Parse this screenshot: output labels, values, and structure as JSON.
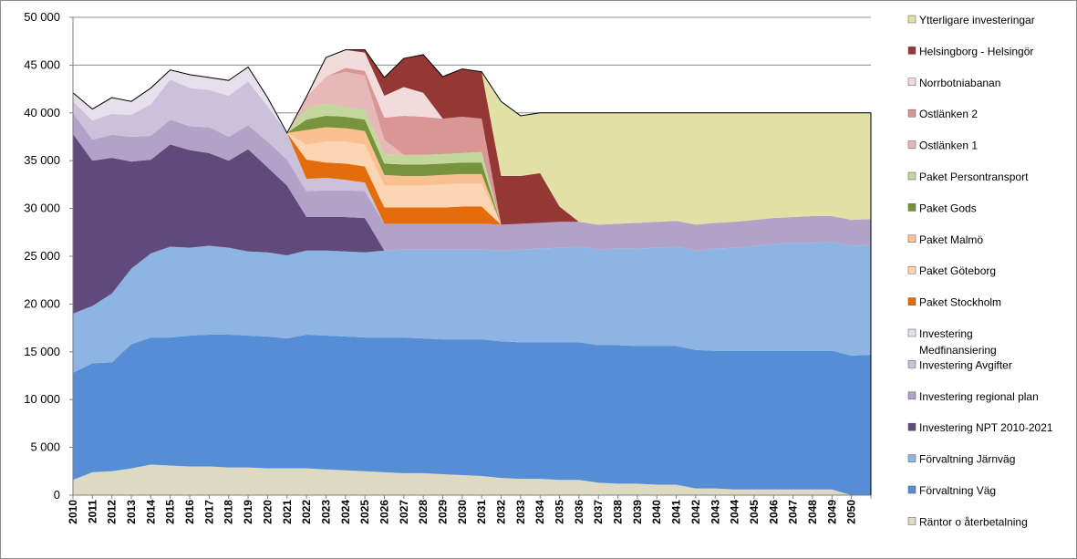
{
  "chart_data": {
    "type": "area",
    "stacked": true,
    "title": "",
    "xlabel": "",
    "ylabel": "",
    "ylim": [
      0,
      50000
    ],
    "yticks": [
      0,
      5000,
      10000,
      15000,
      20000,
      25000,
      30000,
      35000,
      40000,
      45000,
      50000
    ],
    "ytick_labels": [
      "0",
      "5 000",
      "10 000",
      "15 000",
      "20 000",
      "25 000",
      "30 000",
      "35 000",
      "40 000",
      "45 000",
      "50 000"
    ],
    "grid": "horizontal",
    "legend_position": "right",
    "x": [
      2010,
      2011,
      2012,
      2013,
      2014,
      2015,
      2016,
      2017,
      2018,
      2019,
      2020,
      2021,
      2022,
      2023,
      2024,
      2025,
      2026,
      2027,
      2028,
      2029,
      2030,
      2031,
      2032,
      2033,
      2034,
      2035,
      2036,
      2037,
      2038,
      2039,
      2040,
      2041,
      2042,
      2043,
      2044,
      2045,
      2046,
      2047,
      2048,
      2049,
      2050,
      2051
    ],
    "x_labels": [
      "2010",
      "2011",
      "2012",
      "2013",
      "2014",
      "2015",
      "2016",
      "2017",
      "2018",
      "2019",
      "2020",
      "2021",
      "2022",
      "2023",
      "2024",
      "2025",
      "2026",
      "2027",
      "2028",
      "2029",
      "2030",
      "2031",
      "2032",
      "2033",
      "2034",
      "2035",
      "2036",
      "2037",
      "2038",
      "2039",
      "2040",
      "2041",
      "2042",
      "2043",
      "2044",
      "2045",
      "2046",
      "2047",
      "2048",
      "2049",
      "2050",
      ""
    ],
    "series": [
      {
        "name": "Räntor o återbetalning",
        "color": "#ddd9c3",
        "values": [
          1600,
          2400,
          2500,
          2800,
          3200,
          3100,
          3000,
          3000,
          2900,
          2900,
          2800,
          2800,
          2800,
          2700,
          2600,
          2500,
          2400,
          2300,
          2300,
          2200,
          2100,
          2000,
          1800,
          1700,
          1700,
          1600,
          1600,
          1300,
          1200,
          1200,
          1100,
          1100,
          700,
          700,
          600,
          600,
          600,
          600,
          600,
          600,
          0,
          0
        ]
      },
      {
        "name": "Förvaltning Väg",
        "color": "#558ed5",
        "values": [
          11200,
          11400,
          11400,
          13000,
          13300,
          13400,
          13700,
          13800,
          13900,
          13800,
          13800,
          13600,
          14000,
          14000,
          14000,
          14000,
          14100,
          14200,
          14100,
          14100,
          14200,
          14300,
          14300,
          14300,
          14300,
          14400,
          14400,
          14400,
          14500,
          14400,
          14500,
          14500,
          14500,
          14400,
          14500,
          14500,
          14500,
          14500,
          14500,
          14500,
          14600,
          14700
        ]
      },
      {
        "name": "Förvaltning Järnväg",
        "color": "#8eb4e3",
        "values": [
          6200,
          6000,
          7200,
          7900,
          8800,
          9500,
          9200,
          9300,
          9100,
          8800,
          8800,
          8700,
          8800,
          8900,
          8900,
          8900,
          9100,
          9200,
          9300,
          9400,
          9400,
          9400,
          9500,
          9700,
          9800,
          9900,
          10000,
          10000,
          10100,
          10200,
          10300,
          10400,
          10400,
          10700,
          10800,
          11000,
          11200,
          11300,
          11300,
          11400,
          11500,
          11500
        ]
      },
      {
        "name": "Investering NPT 2010-2021",
        "color": "#604a7b",
        "values": [
          18800,
          15200,
          14200,
          11200,
          9800,
          10700,
          10200,
          9700,
          9100,
          10700,
          8900,
          7300,
          3500,
          3500,
          3600,
          3600,
          0,
          0,
          0,
          0,
          0,
          0,
          0,
          0,
          0,
          0,
          0,
          0,
          0,
          0,
          0,
          0,
          0,
          0,
          0,
          0,
          0,
          0,
          0,
          0,
          0,
          0
        ]
      },
      {
        "name": "Investering regional plan",
        "color": "#b3a2c7",
        "values": [
          2200,
          2200,
          2400,
          2600,
          2500,
          2600,
          2500,
          2700,
          2500,
          2500,
          2700,
          2700,
          2700,
          2800,
          2800,
          2800,
          2800,
          2700,
          2700,
          2700,
          2700,
          2700,
          2700,
          2700,
          2700,
          2700,
          2600,
          2600,
          2600,
          2700,
          2700,
          2700,
          2700,
          2700,
          2700,
          2700,
          2700,
          2700,
          2800,
          2700,
          2700,
          2700
        ]
      },
      {
        "name": "Investering Avgifter",
        "color": "#ccc1da",
        "values": [
          1200,
          2000,
          2200,
          2300,
          3300,
          4200,
          4000,
          3900,
          4300,
          4600,
          3700,
          2800,
          1300,
          1300,
          1100,
          900,
          0,
          0,
          0,
          0,
          0,
          0,
          0,
          0,
          0,
          0,
          0,
          0,
          0,
          0,
          0,
          0,
          0,
          0,
          0,
          0,
          0,
          0,
          0,
          0,
          0,
          0
        ]
      },
      {
        "name": "Investering Medfinansiering",
        "color": "#e6e0ec",
        "values": [
          900,
          1200,
          1700,
          1400,
          1700,
          1000,
          1400,
          1300,
          1600,
          1500,
          900,
          0,
          0,
          0,
          0,
          0,
          0,
          0,
          0,
          0,
          0,
          0,
          0,
          0,
          0,
          0,
          0,
          0,
          0,
          0,
          0,
          0,
          0,
          0,
          0,
          0,
          0,
          0,
          0,
          0,
          0,
          0
        ]
      },
      {
        "name": "Paket Stockholm",
        "color": "#e46c0a",
        "values": [
          0,
          0,
          0,
          0,
          0,
          0,
          0,
          0,
          0,
          0,
          0,
          0,
          2000,
          1600,
          1700,
          1700,
          1700,
          1700,
          1700,
          1700,
          1800,
          1800,
          0,
          0,
          0,
          0,
          0,
          0,
          0,
          0,
          0,
          0,
          0,
          0,
          0,
          0,
          0,
          0,
          0,
          0,
          0,
          0
        ]
      },
      {
        "name": "Paket Göteborg",
        "color": "#fcd5b5",
        "values": [
          0,
          0,
          0,
          0,
          0,
          0,
          0,
          0,
          0,
          0,
          0,
          0,
          1600,
          2200,
          2300,
          2300,
          2300,
          2300,
          2300,
          2400,
          2400,
          2400,
          0,
          0,
          0,
          0,
          0,
          0,
          0,
          0,
          0,
          0,
          0,
          0,
          0,
          0,
          0,
          0,
          0,
          0,
          0,
          0
        ]
      },
      {
        "name": "Paket Malmö",
        "color": "#fac090",
        "values": [
          0,
          0,
          0,
          0,
          0,
          0,
          0,
          0,
          0,
          0,
          0,
          0,
          1500,
          1500,
          1400,
          1400,
          1100,
          1000,
          1000,
          1000,
          1000,
          1000,
          0,
          0,
          0,
          0,
          0,
          0,
          0,
          0,
          0,
          0,
          0,
          0,
          0,
          0,
          0,
          0,
          0,
          0,
          0,
          0
        ]
      },
      {
        "name": "Paket Gods",
        "color": "#77933c",
        "values": [
          0,
          0,
          0,
          0,
          0,
          0,
          0,
          0,
          0,
          0,
          0,
          0,
          1100,
          1200,
          1200,
          1200,
          1200,
          1200,
          1200,
          1200,
          1200,
          1200,
          0,
          0,
          0,
          0,
          0,
          0,
          0,
          0,
          0,
          0,
          0,
          0,
          0,
          0,
          0,
          0,
          0,
          0,
          0,
          0
        ]
      },
      {
        "name": "Paket Persontransport",
        "color": "#c3d69b",
        "values": [
          0,
          0,
          0,
          0,
          0,
          0,
          0,
          0,
          0,
          0,
          0,
          0,
          1200,
          1300,
          1000,
          1000,
          1000,
          1000,
          1000,
          1000,
          1000,
          1100,
          0,
          0,
          0,
          0,
          0,
          0,
          0,
          0,
          0,
          0,
          0,
          0,
          0,
          0,
          0,
          0,
          0,
          0,
          0,
          0
        ]
      },
      {
        "name": "Ostlänken 1",
        "color": "#e6b9b8",
        "values": [
          0,
          0,
          0,
          0,
          0,
          0,
          0,
          0,
          0,
          0,
          0,
          0,
          1200,
          2800,
          3700,
          3600,
          1500,
          0,
          0,
          0,
          0,
          0,
          0,
          0,
          0,
          0,
          0,
          0,
          0,
          0,
          0,
          0,
          0,
          0,
          0,
          0,
          0,
          0,
          0,
          0,
          0,
          0
        ]
      },
      {
        "name": "Ostlänken 2",
        "color": "#d99694",
        "values": [
          0,
          0,
          0,
          0,
          0,
          0,
          0,
          0,
          0,
          0,
          0,
          0,
          0,
          0,
          400,
          500,
          2300,
          4100,
          4000,
          3700,
          3800,
          3500,
          0,
          0,
          0,
          0,
          0,
          0,
          0,
          0,
          0,
          0,
          0,
          0,
          0,
          0,
          0,
          0,
          0,
          0,
          0,
          0
        ]
      },
      {
        "name": "Norrbotniabanan",
        "color": "#f2dcdb",
        "values": [
          0,
          0,
          0,
          0,
          0,
          0,
          0,
          0,
          0,
          0,
          0,
          0,
          0,
          2000,
          1900,
          1900,
          2300,
          3000,
          2500,
          0,
          0,
          0,
          0,
          0,
          0,
          0,
          0,
          0,
          0,
          0,
          0,
          0,
          0,
          0,
          0,
          0,
          0,
          0,
          0,
          0,
          0,
          0
        ]
      },
      {
        "name": "Helsingborg - Helsingör",
        "color": "#953735",
        "values": [
          0,
          0,
          0,
          0,
          0,
          0,
          0,
          0,
          0,
          0,
          0,
          0,
          0,
          0,
          0,
          300,
          1900,
          3000,
          4000,
          4400,
          5000,
          4900,
          5100,
          5000,
          5200,
          1600,
          0,
          0,
          0,
          0,
          0,
          0,
          0,
          0,
          0,
          0,
          0,
          0,
          0,
          0,
          0,
          0
        ]
      },
      {
        "name": "Ytterligare investeringar",
        "color": "#e2e0a6",
        "values": [
          0,
          0,
          0,
          0,
          0,
          0,
          0,
          0,
          0,
          0,
          0,
          0,
          0,
          0,
          0,
          0,
          0,
          0,
          0,
          0,
          0,
          0,
          7800,
          6300,
          6300,
          9800,
          11400,
          11700,
          11600,
          11500,
          11400,
          11300,
          11700,
          11500,
          11400,
          11200,
          11000,
          10900,
          10800,
          10800,
          11200,
          11100
        ]
      }
    ]
  }
}
